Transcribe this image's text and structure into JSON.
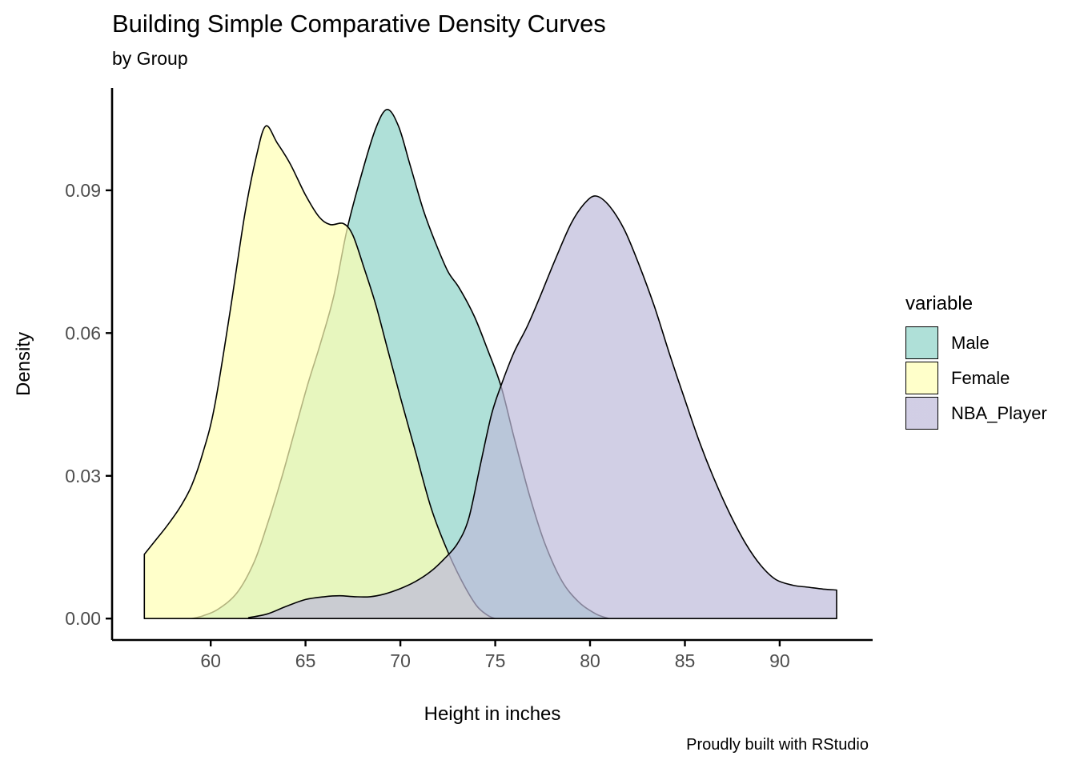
{
  "title": "Building Simple Comparative Density Curves",
  "subtitle": "by Group",
  "caption": "Proudly built with RStudio",
  "chart_data": {
    "type": "area",
    "variant": "density-curves",
    "title": "Building Simple Comparative Density Curves",
    "subtitle": "by Group",
    "xlabel": "Height in inches",
    "ylabel": "Density",
    "legend_title": "variable",
    "legend_position": "right",
    "grid": false,
    "xlim": [
      54.8,
      94.9
    ],
    "ylim": [
      -0.0045,
      0.1115
    ],
    "x_ticks": [
      {
        "v": 60,
        "label": "60"
      },
      {
        "v": 65,
        "label": "65"
      },
      {
        "v": 70,
        "label": "70"
      },
      {
        "v": 75,
        "label": "75"
      },
      {
        "v": 80,
        "label": "80"
      },
      {
        "v": 85,
        "label": "85"
      },
      {
        "v": 90,
        "label": "90"
      }
    ],
    "y_ticks": [
      {
        "v": 0.0,
        "label": "0.00"
      },
      {
        "v": 0.03,
        "label": "0.03"
      },
      {
        "v": 0.06,
        "label": "0.06"
      },
      {
        "v": 0.09,
        "label": "0.09"
      }
    ],
    "fill_opacity": 0.7,
    "stroke_color": "#000000",
    "axis_text_color": "#4D4D4D",
    "series": [
      {
        "name": "Male",
        "fill": "#8DD3C7",
        "points": [
          [
            59.0,
            0
          ],
          [
            59.6,
            0.0006
          ],
          [
            60.4,
            0.002
          ],
          [
            61.4,
            0.0055
          ],
          [
            62.3,
            0.012
          ],
          [
            63.0,
            0.02
          ],
          [
            63.7,
            0.029
          ],
          [
            64.4,
            0.039
          ],
          [
            65.1,
            0.049
          ],
          [
            65.8,
            0.058
          ],
          [
            66.5,
            0.068
          ],
          [
            67.2,
            0.082
          ],
          [
            68.0,
            0.094
          ],
          [
            68.7,
            0.103
          ],
          [
            69.3,
            0.107
          ],
          [
            69.9,
            0.1035
          ],
          [
            70.5,
            0.0955
          ],
          [
            71.2,
            0.086
          ],
          [
            71.8,
            0.0795
          ],
          [
            72.5,
            0.073
          ],
          [
            73.1,
            0.0695
          ],
          [
            73.9,
            0.0635
          ],
          [
            74.6,
            0.0565
          ],
          [
            75.3,
            0.0489
          ],
          [
            76.0,
            0.038
          ],
          [
            76.8,
            0.026
          ],
          [
            77.6,
            0.016
          ],
          [
            78.5,
            0.008
          ],
          [
            79.4,
            0.0035
          ],
          [
            80.3,
            0.001
          ],
          [
            81.0,
            0
          ]
        ]
      },
      {
        "name": "Female",
        "fill": "#FFFFB3",
        "points": [
          [
            56.5,
            0.0135
          ],
          [
            57.1,
            0.0165
          ],
          [
            57.7,
            0.0195
          ],
          [
            58.4,
            0.0235
          ],
          [
            59.0,
            0.028
          ],
          [
            59.6,
            0.035
          ],
          [
            60.2,
            0.0445
          ],
          [
            61.0,
            0.064
          ],
          [
            61.8,
            0.085
          ],
          [
            62.4,
            0.097
          ],
          [
            62.9,
            0.1035
          ],
          [
            63.5,
            0.1
          ],
          [
            64.2,
            0.0955
          ],
          [
            65.0,
            0.089
          ],
          [
            65.7,
            0.0845
          ],
          [
            66.3,
            0.0828
          ],
          [
            67.0,
            0.083
          ],
          [
            67.5,
            0.0805
          ],
          [
            68.1,
            0.0735
          ],
          [
            68.7,
            0.066
          ],
          [
            69.3,
            0.057
          ],
          [
            70.0,
            0.0465
          ],
          [
            70.8,
            0.035
          ],
          [
            71.6,
            0.0235
          ],
          [
            72.4,
            0.015
          ],
          [
            73.2,
            0.0082
          ],
          [
            74.0,
            0.0028
          ],
          [
            74.6,
            0.0007
          ],
          [
            75.0,
            0
          ]
        ]
      },
      {
        "name": "NBA_Player",
        "fill": "#BEBADA",
        "points": [
          [
            62.0,
            0.0002
          ],
          [
            63.0,
            0.001
          ],
          [
            64.0,
            0.0026
          ],
          [
            65.0,
            0.004
          ],
          [
            66.0,
            0.0046
          ],
          [
            66.8,
            0.0048
          ],
          [
            67.6,
            0.0046
          ],
          [
            68.4,
            0.0046
          ],
          [
            69.2,
            0.0052
          ],
          [
            70.0,
            0.0063
          ],
          [
            70.8,
            0.0078
          ],
          [
            71.6,
            0.0099
          ],
          [
            72.3,
            0.0125
          ],
          [
            73.0,
            0.0157
          ],
          [
            73.6,
            0.021
          ],
          [
            74.2,
            0.032
          ],
          [
            74.8,
            0.0428
          ],
          [
            75.3,
            0.0489
          ],
          [
            76.0,
            0.056
          ],
          [
            76.7,
            0.0615
          ],
          [
            77.4,
            0.068
          ],
          [
            78.2,
            0.0758
          ],
          [
            79.0,
            0.083
          ],
          [
            79.7,
            0.0872
          ],
          [
            80.3,
            0.0888
          ],
          [
            81.0,
            0.0868
          ],
          [
            81.8,
            0.0818
          ],
          [
            82.6,
            0.0742
          ],
          [
            83.4,
            0.0655
          ],
          [
            84.2,
            0.0555
          ],
          [
            85.0,
            0.046
          ],
          [
            85.8,
            0.0368
          ],
          [
            86.6,
            0.0288
          ],
          [
            87.4,
            0.0218
          ],
          [
            88.2,
            0.0158
          ],
          [
            89.0,
            0.0112
          ],
          [
            89.8,
            0.0082
          ],
          [
            90.7,
            0.007
          ],
          [
            91.5,
            0.0066
          ],
          [
            92.3,
            0.0062
          ],
          [
            93.0,
            0.006
          ]
        ]
      }
    ]
  }
}
